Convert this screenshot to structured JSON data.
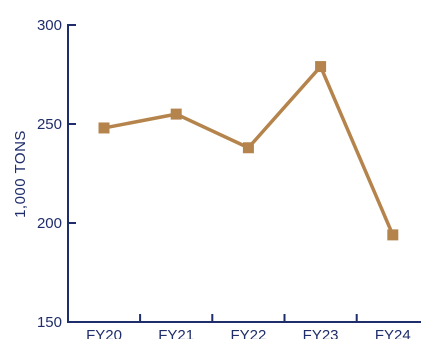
{
  "chart_data": {
    "type": "line",
    "title": "",
    "xlabel": "",
    "ylabel": "1,000 TONS",
    "categories": [
      "FY20",
      "FY21",
      "FY22",
      "FY23",
      "FY24"
    ],
    "series": [
      {
        "values": [
          248,
          255,
          238,
          279,
          194
        ]
      }
    ],
    "ylim": [
      150,
      300
    ],
    "yticks": [
      "150",
      "200",
      "250",
      "300"
    ],
    "grid": false,
    "legend": "none",
    "colors": {
      "series": "#b5844c",
      "axis": "#1f2d6b",
      "text": "#1f2d6b"
    },
    "marker": "square"
  }
}
